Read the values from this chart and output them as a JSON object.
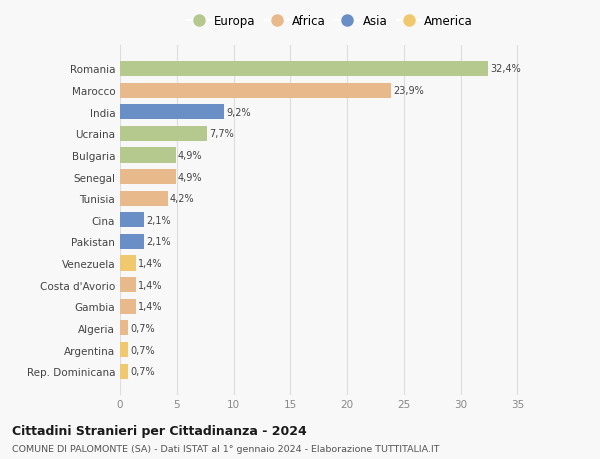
{
  "countries": [
    "Romania",
    "Marocco",
    "India",
    "Ucraina",
    "Bulgaria",
    "Senegal",
    "Tunisia",
    "Cina",
    "Pakistan",
    "Venezuela",
    "Costa d'Avorio",
    "Gambia",
    "Algeria",
    "Argentina",
    "Rep. Dominicana"
  ],
  "values": [
    32.4,
    23.9,
    9.2,
    7.7,
    4.9,
    4.9,
    4.2,
    2.1,
    2.1,
    1.4,
    1.4,
    1.4,
    0.7,
    0.7,
    0.7
  ],
  "labels": [
    "32,4%",
    "23,9%",
    "9,2%",
    "7,7%",
    "4,9%",
    "4,9%",
    "4,2%",
    "2,1%",
    "2,1%",
    "1,4%",
    "1,4%",
    "1,4%",
    "0,7%",
    "0,7%",
    "0,7%"
  ],
  "continents": [
    "Europa",
    "Africa",
    "Asia",
    "Europa",
    "Europa",
    "Africa",
    "Africa",
    "Asia",
    "Asia",
    "America",
    "Africa",
    "Africa",
    "Africa",
    "America",
    "America"
  ],
  "continent_colors": {
    "Europa": "#b5c98e",
    "Africa": "#e8b98a",
    "Asia": "#6a8fc7",
    "America": "#f0c96e"
  },
  "legend_order": [
    "Europa",
    "Africa",
    "Asia",
    "America"
  ],
  "title": "Cittadini Stranieri per Cittadinanza - 2024",
  "subtitle": "COMUNE DI PALOMONTE (SA) - Dati ISTAT al 1° gennaio 2024 - Elaborazione TUTTITALIA.IT",
  "xlim": [
    0,
    37
  ],
  "xticks": [
    0,
    5,
    10,
    15,
    20,
    25,
    30,
    35
  ],
  "bg_color": "#f8f8f8",
  "grid_color": "#dddddd",
  "bar_height": 0.7
}
